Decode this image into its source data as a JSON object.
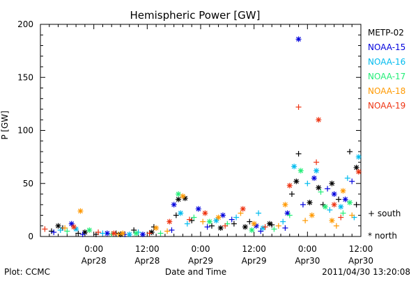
{
  "chart_data": {
    "type": "scatter",
    "title": "Hemispheric Power [GW]",
    "xlabel": "Date and Time",
    "ylabel": "P [GW]",
    "x_start": "2011-04-27 12:00",
    "x_end": "2011-04-30 12:00",
    "ylim": [
      0,
      200
    ],
    "yticks": [
      0,
      50,
      100,
      150,
      200
    ],
    "xtick_labels": [
      {
        "time": "0:00",
        "date": "Apr28",
        "t": "2011-04-28 00:00"
      },
      {
        "time": "12:00",
        "date": "Apr28",
        "t": "2011-04-28 12:00"
      },
      {
        "time": "0:00",
        "date": "Apr29",
        "t": "2011-04-29 00:00"
      },
      {
        "time": "12:00",
        "date": "Apr29",
        "t": "2011-04-29 12:00"
      },
      {
        "time": "0:00",
        "date": "Apr30",
        "t": "2011-04-30 00:00"
      },
      {
        "time": "12:00",
        "date": "Apr30",
        "t": "2011-04-30 12:00"
      }
    ],
    "legend_placement": "right",
    "marker_legend": {
      "south": "+ south",
      "north": "* north"
    },
    "series": [
      {
        "name": "METP-02",
        "color": "#000000",
        "south": [
          [
            "2011-04-27 14:30",
            5
          ],
          [
            "2011-04-27 17:00",
            8
          ],
          [
            "2011-04-27 20:30",
            3
          ],
          [
            "2011-04-28 00:30",
            2
          ],
          [
            "2011-04-28 05:00",
            3
          ],
          [
            "2011-04-28 09:00",
            6
          ],
          [
            "2011-04-28 13:30",
            9
          ],
          [
            "2011-04-28 18:30",
            20
          ],
          [
            "2011-04-28 22:00",
            15
          ],
          [
            "2011-04-29 02:30",
            10
          ],
          [
            "2011-04-29 07:30",
            12
          ],
          [
            "2011-04-29 11:00",
            14
          ],
          [
            "2011-04-29 16:00",
            11
          ],
          [
            "2011-04-29 20:30",
            40
          ],
          [
            "2011-04-29 22:00",
            78
          ],
          [
            "2011-04-30 03:30",
            30
          ],
          [
            "2011-04-30 07:00",
            35
          ],
          [
            "2011-04-30 09:30",
            80
          ],
          [
            "2011-04-30 11:00",
            30
          ]
        ],
        "north": [
          [
            "2011-04-27 16:00",
            10
          ],
          [
            "2011-04-27 22:00",
            4
          ],
          [
            "2011-04-28 06:00",
            2
          ],
          [
            "2011-04-28 13:00",
            4
          ],
          [
            "2011-04-28 19:00",
            35
          ],
          [
            "2011-04-28 20:30",
            36
          ],
          [
            "2011-04-29 04:30",
            8
          ],
          [
            "2011-04-29 10:00",
            9
          ],
          [
            "2011-04-29 15:30",
            12
          ],
          [
            "2011-04-29 21:30",
            52
          ],
          [
            "2011-04-30 00:30",
            32
          ],
          [
            "2011-04-30 02:30",
            46
          ],
          [
            "2011-04-30 05:30",
            50
          ],
          [
            "2011-04-30 11:00",
            65
          ]
        ]
      },
      {
        "name": "NOAA-15",
        "color": "#0000dd",
        "south": [
          [
            "2011-04-27 15:00",
            4
          ],
          [
            "2011-04-27 21:30",
            2
          ],
          [
            "2011-04-28 07:00",
            2
          ],
          [
            "2011-04-28 17:30",
            6
          ],
          [
            "2011-04-29 01:30",
            9
          ],
          [
            "2011-04-29 07:00",
            16
          ],
          [
            "2011-04-29 13:30",
            5
          ],
          [
            "2011-04-29 19:00",
            8
          ],
          [
            "2011-04-29 23:00",
            30
          ],
          [
            "2011-04-30 04:30",
            45
          ],
          [
            "2011-04-30 10:00",
            52
          ]
        ],
        "north": [
          [
            "2011-04-27 19:00",
            12
          ],
          [
            "2011-04-28 03:00",
            3
          ],
          [
            "2011-04-28 11:00",
            2
          ],
          [
            "2011-04-28 18:00",
            30
          ],
          [
            "2011-04-28 23:30",
            26
          ],
          [
            "2011-04-29 05:00",
            20
          ],
          [
            "2011-04-29 12:30",
            10
          ],
          [
            "2011-04-29 19:30",
            22
          ],
          [
            "2011-04-29 22:00",
            186
          ],
          [
            "2011-04-30 01:30",
            55
          ],
          [
            "2011-04-30 06:00",
            40
          ],
          [
            "2011-04-30 08:30",
            35
          ]
        ]
      },
      {
        "name": "NOAA-16",
        "color": "#00bbee",
        "south": [
          [
            "2011-04-27 16:30",
            6
          ],
          [
            "2011-04-28 02:00",
            3
          ],
          [
            "2011-04-28 10:00",
            4
          ],
          [
            "2011-04-28 21:00",
            12
          ],
          [
            "2011-04-29 08:00",
            18
          ],
          [
            "2011-04-29 13:00",
            22
          ],
          [
            "2011-04-29 18:30",
            14
          ],
          [
            "2011-04-30 00:00",
            50
          ],
          [
            "2011-04-30 05:00",
            25
          ],
          [
            "2011-04-30 09:00",
            55
          ],
          [
            "2011-04-30 10:30",
            18
          ]
        ],
        "north": [
          [
            "2011-04-27 20:00",
            7
          ],
          [
            "2011-04-28 08:00",
            2
          ],
          [
            "2011-04-28 19:30",
            22
          ],
          [
            "2011-04-29 03:30",
            15
          ],
          [
            "2011-04-29 14:00",
            8
          ],
          [
            "2011-04-29 21:00",
            66
          ],
          [
            "2011-04-30 02:00",
            62
          ],
          [
            "2011-04-30 07:30",
            28
          ],
          [
            "2011-04-30 11:30",
            75
          ]
        ]
      },
      {
        "name": "NOAA-17",
        "color": "#22ee77",
        "south": [
          [
            "2011-04-27 18:00",
            5
          ],
          [
            "2011-04-28 04:00",
            2
          ],
          [
            "2011-04-28 15:00",
            3
          ],
          [
            "2011-04-28 22:30",
            18
          ],
          [
            "2011-04-29 06:00",
            12
          ],
          [
            "2011-04-29 16:30",
            7
          ],
          [
            "2011-04-29 20:00",
            20
          ],
          [
            "2011-04-30 03:00",
            42
          ],
          [
            "2011-04-30 08:00",
            22
          ]
        ],
        "north": [
          [
            "2011-04-27 23:00",
            6
          ],
          [
            "2011-04-28 09:30",
            3
          ],
          [
            "2011-04-28 19:00",
            40
          ],
          [
            "2011-04-29 02:00",
            14
          ],
          [
            "2011-04-29 11:30",
            6
          ],
          [
            "2011-04-29 22:30",
            62
          ],
          [
            "2011-04-30 04:00",
            28
          ],
          [
            "2011-04-30 09:30",
            32
          ]
        ]
      },
      {
        "name": "NOAA-18",
        "color": "#ff9900",
        "south": [
          [
            "2011-04-27 17:30",
            8
          ],
          [
            "2011-04-28 05:30",
            2
          ],
          [
            "2011-04-28 16:30",
            5
          ],
          [
            "2011-04-29 00:30",
            14
          ],
          [
            "2011-04-29 09:00",
            22
          ],
          [
            "2011-04-29 17:30",
            10
          ],
          [
            "2011-04-29 23:30",
            15
          ],
          [
            "2011-04-30 06:30",
            10
          ],
          [
            "2011-04-30 10:00",
            20
          ]
        ],
        "north": [
          [
            "2011-04-27 21:00",
            24
          ],
          [
            "2011-04-28 06:30",
            3
          ],
          [
            "2011-04-28 14:00",
            8
          ],
          [
            "2011-04-28 20:00",
            38
          ],
          [
            "2011-04-29 04:00",
            18
          ],
          [
            "2011-04-29 12:00",
            12
          ],
          [
            "2011-04-29 19:00",
            30
          ],
          [
            "2011-04-30 01:00",
            20
          ],
          [
            "2011-04-30 05:30",
            15
          ],
          [
            "2011-04-30 08:00",
            43
          ]
        ]
      },
      {
        "name": "NOAA-19",
        "color": "#ee3311",
        "south": [
          [
            "2011-04-27 13:00",
            7
          ],
          [
            "2011-04-28 01:00",
            4
          ],
          [
            "2011-04-28 12:30",
            3
          ],
          [
            "2011-04-28 21:30",
            16
          ],
          [
            "2011-04-29 05:30",
            10
          ],
          [
            "2011-04-29 14:30",
            9
          ],
          [
            "2011-04-29 22:00",
            122
          ],
          [
            "2011-04-30 02:00",
            70
          ],
          [
            "2011-04-30 07:30",
            18
          ]
        ],
        "north": [
          [
            "2011-04-27 19:30",
            9
          ],
          [
            "2011-04-28 04:30",
            3
          ],
          [
            "2011-04-28 17:00",
            14
          ],
          [
            "2011-04-29 01:00",
            22
          ],
          [
            "2011-04-29 09:30",
            26
          ],
          [
            "2011-04-29 20:00",
            48
          ],
          [
            "2011-04-30 02:30",
            110
          ],
          [
            "2011-04-30 06:00",
            30
          ],
          [
            "2011-04-30 11:30",
            61
          ]
        ]
      }
    ]
  },
  "footer": {
    "left": "Plot: CCMC",
    "right": "2011/04/30 13:20:08"
  }
}
